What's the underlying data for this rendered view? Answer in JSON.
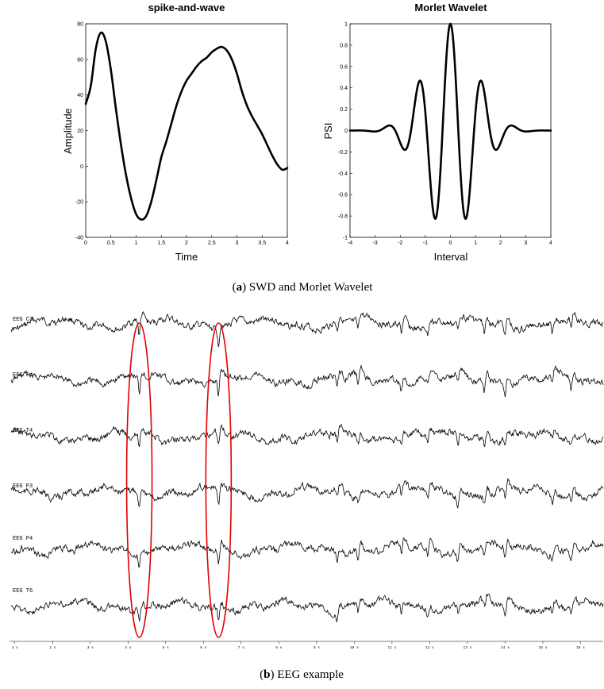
{
  "figure": {
    "caption_a": {
      "letter": "a",
      "text": "SWD and Morlet Wavelet"
    },
    "caption_b": {
      "letter": "b",
      "text": "EEG example"
    },
    "highlight_color": "#e00000",
    "trace_color": "#000000"
  },
  "chart_data": [
    {
      "id": "swd",
      "type": "line",
      "title": "spike-and-wave",
      "xlabel": "Time",
      "ylabel": "Amplitude",
      "xlim": [
        0,
        4
      ],
      "ylim": [
        -40,
        80
      ],
      "xticks": [
        "0",
        "0.5",
        "1",
        "1.5",
        "2",
        "2.5",
        "3",
        "3.5",
        "4"
      ],
      "yticks": [
        "-40",
        "-20",
        "0",
        "20",
        "40",
        "60",
        "80"
      ],
      "grid": false,
      "x": [
        0,
        0.1,
        0.2,
        0.3,
        0.4,
        0.5,
        0.6,
        0.7,
        0.8,
        0.9,
        1.0,
        1.1,
        1.2,
        1.3,
        1.4,
        1.5,
        1.6,
        1.7,
        1.8,
        1.9,
        2.0,
        2.1,
        2.2,
        2.3,
        2.4,
        2.5,
        2.6,
        2.7,
        2.8,
        2.9,
        3.0,
        3.1,
        3.2,
        3.3,
        3.4,
        3.5,
        3.6,
        3.7,
        3.8,
        3.9,
        4.0
      ],
      "y": [
        35,
        45,
        66,
        75,
        70,
        54,
        32,
        12,
        -5,
        -18,
        -27,
        -30,
        -28,
        -20,
        -8,
        5,
        14,
        24,
        34,
        42,
        48,
        52,
        56,
        59,
        61,
        64,
        66,
        67,
        65,
        60,
        52,
        42,
        34,
        28,
        23,
        18,
        12,
        6,
        1,
        -2,
        -1
      ]
    },
    {
      "id": "morlet",
      "type": "line",
      "title": "Morlet Wavelet",
      "xlabel": "Interval",
      "ylabel": "PSI",
      "xlim": [
        -4,
        4
      ],
      "ylim": [
        -1,
        1
      ],
      "xticks": [
        "-4",
        "-3",
        "-2",
        "-1",
        "0",
        "1",
        "2",
        "3",
        "4"
      ],
      "yticks": [
        "-1",
        "-0.8",
        "-0.6",
        "-0.4",
        "-0.2",
        "0",
        "0.2",
        "0.4",
        "0.6",
        "0.8",
        "1"
      ],
      "grid": false,
      "function": "exp(-x^2/2)*cos(5x)"
    },
    {
      "id": "eeg",
      "type": "line",
      "title": "",
      "channels": [
        "EEG C3",
        "EEG Cz",
        "EEG T4",
        "EEG P3",
        "EEG P4",
        "EEG T6"
      ],
      "xticks": [
        "1 s",
        "2 s",
        "3 s",
        "4 s",
        "5 s",
        "6 s",
        "7 s",
        "8 s",
        "9 s",
        "10 s",
        "11 s",
        "12 s",
        "13 s",
        "14 s",
        "15 s",
        "16 s"
      ],
      "highlighted_times": [
        4.3,
        6.4
      ]
    }
  ]
}
